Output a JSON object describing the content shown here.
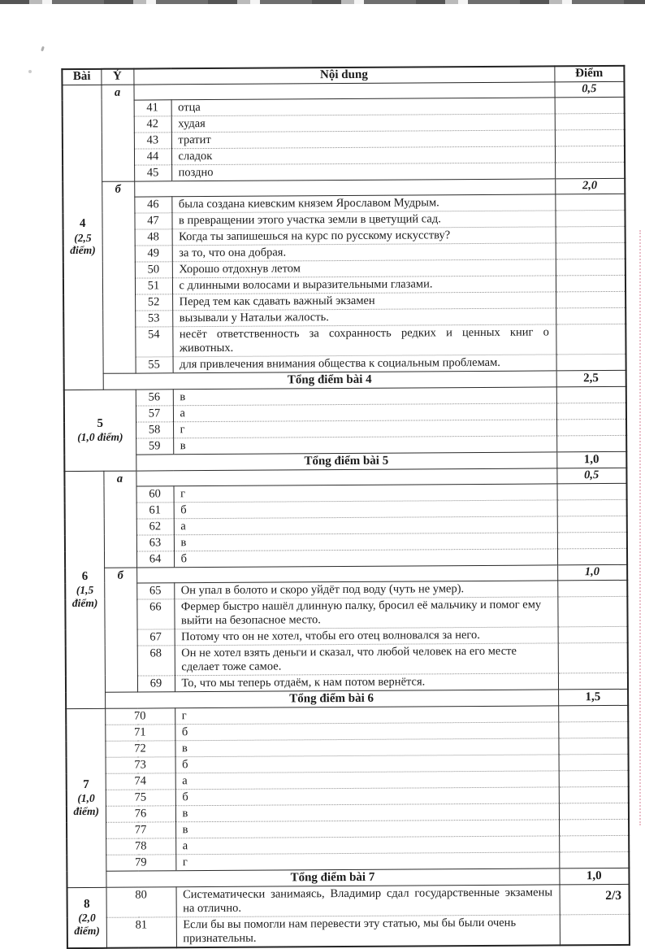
{
  "page": {
    "footer": "2/3"
  },
  "header": {
    "col_bai": "Bài",
    "col_y": "Ý",
    "col_noidung": "Nội dung",
    "col_diem": "Điểm"
  },
  "sections": [
    {
      "bai": "4",
      "sub": "(2,5 điểm)",
      "groups": [
        {
          "label": "a",
          "score": "0,5",
          "items": [
            {
              "num": "41",
              "text": "отца"
            },
            {
              "num": "42",
              "text": "худая"
            },
            {
              "num": "43",
              "text": "тратит"
            },
            {
              "num": "44",
              "text": "сладок"
            },
            {
              "num": "45",
              "text": "поздно"
            }
          ]
        },
        {
          "label": "б",
          "score": "2,0",
          "items": [
            {
              "num": "46",
              "text": "была создана киевским князем Ярославом Мудрым."
            },
            {
              "num": "47",
              "text": "в превращении этого участка земли в цветущий сад."
            },
            {
              "num": "48",
              "text": "Когда ты запишешься на курс по русскому искусству?"
            },
            {
              "num": "49",
              "text": "за то, что она добрая."
            },
            {
              "num": "50",
              "text": "Хорошо отдохнув летом"
            },
            {
              "num": "51",
              "text": "с длинными волосами и выразительными глазами."
            },
            {
              "num": "52",
              "text": "Перед тем как сдавать важный экзамен"
            },
            {
              "num": "53",
              "text": "вызывали у Натальи жалость."
            },
            {
              "num": "54",
              "text": "несёт ответственность за сохранность редких и ценных книг о животных.",
              "justify": true
            },
            {
              "num": "55",
              "text": "для привлечения внимания общества к социальным проблемам."
            }
          ]
        }
      ],
      "total": {
        "label": "Tổng điểm bài 4",
        "score": "2,5"
      }
    },
    {
      "bai": "5",
      "sub": "(1,0 điểm)",
      "bai_wide": true,
      "groups": [
        {
          "items": [
            {
              "num": "56",
              "text": "в"
            },
            {
              "num": "57",
              "text": "а"
            },
            {
              "num": "58",
              "text": "г"
            },
            {
              "num": "59",
              "text": "в"
            }
          ]
        }
      ],
      "total": {
        "label": "Tổng điểm bài 5",
        "score": "1,0"
      }
    },
    {
      "bai": "6",
      "sub": "(1,5 điểm)",
      "groups": [
        {
          "label": "a",
          "score": "0,5",
          "items": [
            {
              "num": "60",
              "text": "г"
            },
            {
              "num": "61",
              "text": "б"
            },
            {
              "num": "62",
              "text": "а"
            },
            {
              "num": "63",
              "text": "в"
            },
            {
              "num": "64",
              "text": "б"
            }
          ]
        },
        {
          "label": "б",
          "score": "1,0",
          "items": [
            {
              "num": "65",
              "text": "Он упал в болото и скоро уйдёт под воду (чуть не умер)."
            },
            {
              "num": "66",
              "text": "Фермер быстро нашёл длинную палку, бросил её мальчику и помог ему выйти на безопасное место."
            },
            {
              "num": "67",
              "text": "Потому что он не хотел, чтобы его отец волновался за него."
            },
            {
              "num": "68",
              "text": "Он не хотел взять деньги и сказал, что любой человек на его месте сделает тоже самое."
            },
            {
              "num": "69",
              "text": "То, что мы теперь отдаём, к нам потом вернётся."
            }
          ]
        }
      ],
      "total": {
        "label": "Tổng điểm bài 6",
        "score": "1,5"
      }
    },
    {
      "bai": "7",
      "sub": "(1,0 điểm)",
      "groups": [
        {
          "items": [
            {
              "num": "70",
              "text": "г"
            },
            {
              "num": "71",
              "text": "б"
            },
            {
              "num": "72",
              "text": "в"
            },
            {
              "num": "73",
              "text": "б"
            },
            {
              "num": "74",
              "text": "а"
            },
            {
              "num": "75",
              "text": "б"
            },
            {
              "num": "76",
              "text": "в"
            },
            {
              "num": "77",
              "text": "в"
            },
            {
              "num": "78",
              "text": "а"
            },
            {
              "num": "79",
              "text": "г"
            }
          ]
        }
      ],
      "total": {
        "label": "Tổng điểm bài 7",
        "score": "1,0"
      }
    },
    {
      "bai": "8",
      "sub": "(2,0 điểm)",
      "groups": [
        {
          "items": [
            {
              "num": "80",
              "text": "Систематически занимаясь, Владимир сдал государственные экзамены на отлично.",
              "justify": true
            },
            {
              "num": "81",
              "text": "Если бы вы помогли нам перевести эту статью, мы бы были очень признательны."
            }
          ]
        }
      ],
      "total": null
    }
  ]
}
